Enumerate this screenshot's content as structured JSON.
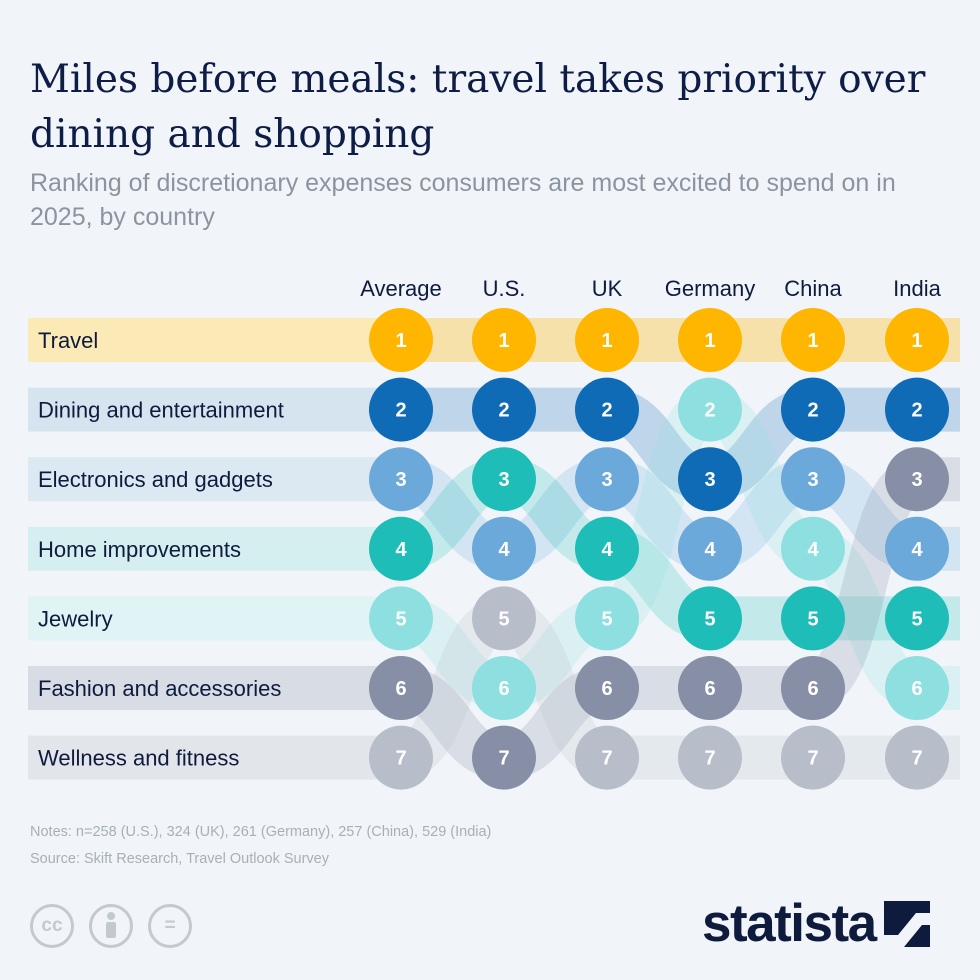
{
  "title": "Miles before meals: travel takes priority over dining and shopping",
  "subtitle": "Ranking of discretionary expenses consumers are most excited to spend on in 2025, by country",
  "chart_data": {
    "type": "table",
    "columns": [
      "Average",
      "U.S.",
      "UK",
      "Germany",
      "China",
      "India"
    ],
    "categories": [
      {
        "name": "Travel",
        "color": "#ffb600",
        "band": "#fbe9b6"
      },
      {
        "name": "Dining and entertainment",
        "color": "#0f6bb5",
        "band": "#d6e4f0"
      },
      {
        "name": "Electronics and gadgets",
        "color": "#6aa9d9",
        "band": "#dce9f3"
      },
      {
        "name": "Home improvements",
        "color": "#1fbdb7",
        "band": "#d5eff0"
      },
      {
        "name": "Jewelry",
        "color": "#8ee0e0",
        "band": "#e0f3f5"
      },
      {
        "name": "Fashion and accessories",
        "color": "#868fa5",
        "band": "#d8dce4"
      },
      {
        "name": "Wellness and fitness",
        "color": "#b8bdca",
        "band": "#e2e5ea"
      }
    ],
    "ranks": {
      "Travel": [
        1,
        1,
        1,
        1,
        1,
        1
      ],
      "Dining and entertainment": [
        2,
        2,
        2,
        3,
        2,
        2
      ],
      "Electronics and gadgets": [
        3,
        4,
        3,
        4,
        3,
        4
      ],
      "Home improvements": [
        4,
        3,
        4,
        5,
        5,
        5
      ],
      "Jewelry": [
        5,
        6,
        5,
        2,
        4,
        6
      ],
      "Fashion and accessories": [
        6,
        7,
        6,
        6,
        6,
        3
      ],
      "Wellness and fitness": [
        7,
        5,
        7,
        7,
        7,
        7
      ]
    }
  },
  "notes": "Notes: n=258 (U.S.), 324 (UK), 261 (Germany), 257 (China), 529 (India)",
  "source": "Source: Skift Research, Travel Outlook Survey",
  "license_icons": [
    "cc-icon",
    "person-icon",
    "equal-icon"
  ],
  "license": {
    "cc": "cc",
    "eq": "="
  },
  "logo": "statista"
}
